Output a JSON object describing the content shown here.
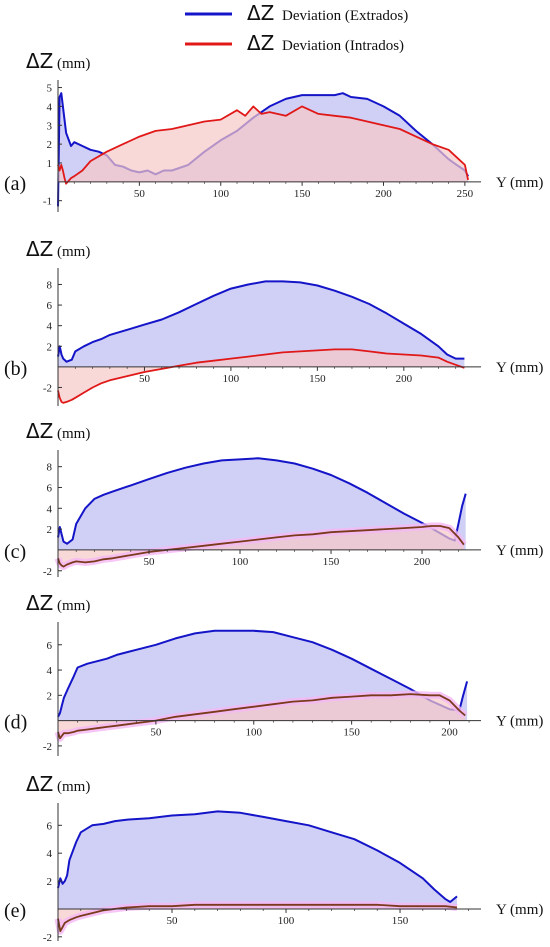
{
  "legend": {
    "symbol": "ΔZ",
    "extrados_label": "Deviation (Extrados)",
    "intrados_label": "Deviation (Intrados)"
  },
  "colors": {
    "extrados": "#1414c8",
    "extrados_fill": "#c8c8f5",
    "intrados_red": "#e01818",
    "intrados_red_fill": "#f7c8c8",
    "intrados_brown": "#7a3a1c",
    "intrados_glow": "#f5b8f5",
    "axis": "#333333"
  },
  "chart_data": [
    {
      "type": "area",
      "panel_label": "(a)",
      "ylabel_symbol": "ΔZ",
      "ylabel_unit": "(mm)",
      "xlabel": "Y (mm)",
      "xlim": [
        0,
        255
      ],
      "ylim": [
        -1.6,
        5.4
      ],
      "xticks": [
        50,
        100,
        150,
        200,
        250
      ],
      "yticks": [
        -1,
        1,
        2,
        3,
        4,
        5
      ],
      "intrados_style": "red",
      "series": [
        {
          "name": "ΔZ Deviation (Extrados)",
          "x": [
            0,
            1,
            2,
            3,
            5,
            8,
            10,
            15,
            20,
            25,
            30,
            35,
            40,
            45,
            50,
            55,
            60,
            65,
            70,
            80,
            90,
            100,
            110,
            120,
            130,
            140,
            150,
            160,
            170,
            175,
            180,
            190,
            200,
            210,
            220,
            230,
            240,
            245,
            250,
            252
          ],
          "y": [
            -1.3,
            4.5,
            4.7,
            4.0,
            2.6,
            1.9,
            2.1,
            1.9,
            1.7,
            1.6,
            1.4,
            0.9,
            0.8,
            0.6,
            0.5,
            0.6,
            0.4,
            0.6,
            0.6,
            0.9,
            1.6,
            2.2,
            2.7,
            3.4,
            4.0,
            4.4,
            4.6,
            4.6,
            4.6,
            4.7,
            4.5,
            4.4,
            4.0,
            3.5,
            2.7,
            2.0,
            1.2,
            0.9,
            0.6,
            0.3
          ]
        },
        {
          "name": "ΔZ Deviation (Intrados)",
          "x": [
            0,
            1,
            2,
            3,
            4,
            5,
            8,
            10,
            15,
            20,
            30,
            40,
            50,
            60,
            70,
            80,
            90,
            100,
            110,
            115,
            120,
            125,
            130,
            140,
            150,
            160,
            170,
            180,
            190,
            200,
            210,
            220,
            230,
            240,
            245,
            250,
            252
          ],
          "y": [
            0.9,
            0.6,
            0.9,
            0.6,
            0.2,
            -0.1,
            0.2,
            0.3,
            0.6,
            1.1,
            1.6,
            2.0,
            2.4,
            2.7,
            2.8,
            3.0,
            3.2,
            3.3,
            3.8,
            3.5,
            4.0,
            3.6,
            3.7,
            3.5,
            4.0,
            3.6,
            3.5,
            3.4,
            3.2,
            3.0,
            2.8,
            2.4,
            2.0,
            1.7,
            1.3,
            0.9,
            0.1
          ]
        }
      ]
    },
    {
      "type": "area",
      "panel_label": "(b)",
      "ylabel_symbol": "ΔZ",
      "ylabel_unit": "(mm)",
      "xlabel": "Y (mm)",
      "xlim": [
        0,
        240
      ],
      "ylim": [
        -3.8,
        9.6
      ],
      "xticks": [
        50,
        100,
        150,
        200
      ],
      "yticks": [
        -2,
        2,
        4,
        6,
        8
      ],
      "intrados_style": "red",
      "series": [
        {
          "name": "ΔZ Deviation (Extrados)",
          "x": [
            0,
            1,
            2,
            3,
            5,
            8,
            10,
            15,
            20,
            25,
            30,
            40,
            50,
            60,
            70,
            80,
            90,
            100,
            110,
            120,
            130,
            140,
            150,
            160,
            170,
            180,
            190,
            200,
            210,
            220,
            225,
            230,
            235
          ],
          "y": [
            1.0,
            2.0,
            1.2,
            0.8,
            0.5,
            0.7,
            1.5,
            2.0,
            2.4,
            2.7,
            3.1,
            3.6,
            4.1,
            4.6,
            5.3,
            6.1,
            6.9,
            7.6,
            8.0,
            8.3,
            8.3,
            8.2,
            7.9,
            7.4,
            6.8,
            6.1,
            5.2,
            4.2,
            3.2,
            2.0,
            1.2,
            0.8,
            0.8
          ]
        },
        {
          "name": "ΔZ Deviation (Intrados)",
          "x": [
            0,
            1,
            2,
            3,
            5,
            8,
            10,
            15,
            20,
            25,
            30,
            40,
            50,
            60,
            70,
            80,
            90,
            100,
            110,
            120,
            130,
            140,
            150,
            160,
            170,
            180,
            190,
            200,
            210,
            220,
            225,
            230,
            235
          ],
          "y": [
            -2.3,
            -3.0,
            -3.4,
            -3.5,
            -3.4,
            -3.2,
            -3.0,
            -2.5,
            -2.0,
            -1.6,
            -1.3,
            -0.9,
            -0.5,
            -0.2,
            0.1,
            0.4,
            0.6,
            0.8,
            1.0,
            1.2,
            1.4,
            1.5,
            1.6,
            1.7,
            1.7,
            1.5,
            1.3,
            1.2,
            1.1,
            0.9,
            0.5,
            0.2,
            -0.1
          ]
        }
      ]
    },
    {
      "type": "area",
      "panel_label": "(c)",
      "ylabel_symbol": "ΔZ",
      "ylabel_unit": "(mm)",
      "xlabel": "Y (mm)",
      "xlim": [
        0,
        228
      ],
      "ylim": [
        -2.6,
        9.6
      ],
      "xticks": [
        50,
        100,
        150,
        200
      ],
      "yticks": [
        -2,
        2,
        4,
        6,
        8
      ],
      "intrados_style": "brown",
      "series": [
        {
          "name": "ΔZ Deviation (Extrados)",
          "x": [
            0,
            1,
            2,
            3,
            5,
            8,
            10,
            15,
            20,
            25,
            30,
            40,
            50,
            60,
            70,
            80,
            90,
            100,
            110,
            120,
            130,
            140,
            150,
            160,
            170,
            180,
            190,
            200,
            210,
            215,
            218,
            220,
            222,
            224
          ],
          "y": [
            1.2,
            2.2,
            1.5,
            0.8,
            0.6,
            1.0,
            2.5,
            4.0,
            4.9,
            5.3,
            5.6,
            6.2,
            6.8,
            7.4,
            7.9,
            8.3,
            8.6,
            8.7,
            8.8,
            8.6,
            8.3,
            7.8,
            7.2,
            6.4,
            5.5,
            4.5,
            3.5,
            2.6,
            1.6,
            1.1,
            0.9,
            2.5,
            4.2,
            5.4
          ]
        },
        {
          "name": "ΔZ Deviation (Intrados)",
          "x": [
            0,
            1,
            2,
            3,
            5,
            8,
            10,
            15,
            20,
            25,
            30,
            40,
            50,
            60,
            70,
            80,
            90,
            100,
            110,
            120,
            130,
            140,
            150,
            160,
            170,
            180,
            190,
            200,
            205,
            210,
            215,
            220,
            223
          ],
          "y": [
            -0.8,
            -1.3,
            -1.5,
            -1.6,
            -1.4,
            -1.2,
            -1.1,
            -1.2,
            -1.1,
            -0.9,
            -0.8,
            -0.5,
            -0.2,
            0.0,
            0.2,
            0.4,
            0.6,
            0.8,
            1.0,
            1.2,
            1.4,
            1.5,
            1.7,
            1.8,
            1.9,
            2.0,
            2.1,
            2.2,
            2.3,
            2.3,
            2.1,
            1.2,
            0.5
          ]
        }
      ]
    },
    {
      "type": "area",
      "panel_label": "(d)",
      "ylabel_symbol": "ΔZ",
      "ylabel_unit": "(mm)",
      "xlabel": "Y (mm)",
      "xlim": [
        0,
        212
      ],
      "ylim": [
        -2.8,
        7.8
      ],
      "xticks": [
        50,
        100,
        150,
        200
      ],
      "yticks": [
        -2,
        2,
        4,
        6
      ],
      "intrados_style": "brown",
      "series": [
        {
          "name": "ΔZ Deviation (Extrados)",
          "x": [
            0,
            1,
            2,
            3,
            5,
            8,
            10,
            15,
            20,
            25,
            30,
            40,
            50,
            60,
            70,
            80,
            90,
            100,
            110,
            120,
            130,
            140,
            150,
            160,
            170,
            180,
            190,
            200,
            205,
            207,
            209
          ],
          "y": [
            0.3,
            0.6,
            1.2,
            1.8,
            2.5,
            3.5,
            4.2,
            4.5,
            4.7,
            4.9,
            5.2,
            5.6,
            6.0,
            6.5,
            6.9,
            7.1,
            7.1,
            7.1,
            7.0,
            6.6,
            6.2,
            5.6,
            4.9,
            4.1,
            3.3,
            2.5,
            1.6,
            0.9,
            0.8,
            2.0,
            3.1
          ]
        },
        {
          "name": "ΔZ Deviation (Intrados)",
          "x": [
            0,
            1,
            2,
            3,
            5,
            8,
            10,
            15,
            20,
            25,
            30,
            40,
            50,
            60,
            70,
            80,
            90,
            100,
            110,
            120,
            130,
            140,
            150,
            160,
            170,
            180,
            190,
            195,
            200,
            205,
            208
          ],
          "y": [
            -0.9,
            -1.4,
            -1.2,
            -1.0,
            -1.0,
            -0.9,
            -0.8,
            -0.7,
            -0.6,
            -0.5,
            -0.4,
            -0.2,
            0.0,
            0.3,
            0.5,
            0.7,
            0.9,
            1.1,
            1.3,
            1.5,
            1.6,
            1.8,
            1.9,
            2.0,
            2.0,
            2.1,
            2.0,
            2.0,
            1.6,
            0.8,
            0.4
          ]
        }
      ]
    },
    {
      "type": "area",
      "panel_label": "(e)",
      "ylabel_symbol": "ΔZ",
      "ylabel_unit": "(mm)",
      "xlabel": "Y (mm)",
      "xlim": [
        0,
        182
      ],
      "ylim": [
        -2.3,
        7.6
      ],
      "xticks": [
        50,
        100,
        150
      ],
      "yticks": [
        -2,
        2,
        4,
        6
      ],
      "intrados_style": "brown",
      "series": [
        {
          "name": "ΔZ Deviation (Extrados)",
          "x": [
            0,
            1,
            2,
            3,
            4,
            5,
            8,
            10,
            15,
            20,
            25,
            30,
            40,
            50,
            60,
            70,
            80,
            90,
            100,
            110,
            120,
            130,
            140,
            150,
            160,
            165,
            170,
            172,
            175
          ],
          "y": [
            1.5,
            2.2,
            1.8,
            2.0,
            2.4,
            3.5,
            4.8,
            5.5,
            6.0,
            6.1,
            6.3,
            6.4,
            6.5,
            6.7,
            6.8,
            7.0,
            6.9,
            6.6,
            6.3,
            6.0,
            5.5,
            5.0,
            4.2,
            3.3,
            2.2,
            1.4,
            0.7,
            0.5,
            0.9
          ]
        },
        {
          "name": "ΔZ Deviation (Intrados)",
          "x": [
            0,
            1,
            2,
            3,
            5,
            8,
            10,
            15,
            20,
            25,
            30,
            40,
            50,
            60,
            70,
            80,
            90,
            100,
            110,
            120,
            130,
            140,
            150,
            160,
            170,
            175
          ],
          "y": [
            -0.7,
            -1.6,
            -1.3,
            -1.0,
            -0.8,
            -0.6,
            -0.5,
            -0.3,
            -0.1,
            0.0,
            0.1,
            0.2,
            0.2,
            0.3,
            0.3,
            0.3,
            0.3,
            0.3,
            0.3,
            0.3,
            0.3,
            0.3,
            0.2,
            0.2,
            0.2,
            0.1
          ]
        }
      ]
    }
  ]
}
